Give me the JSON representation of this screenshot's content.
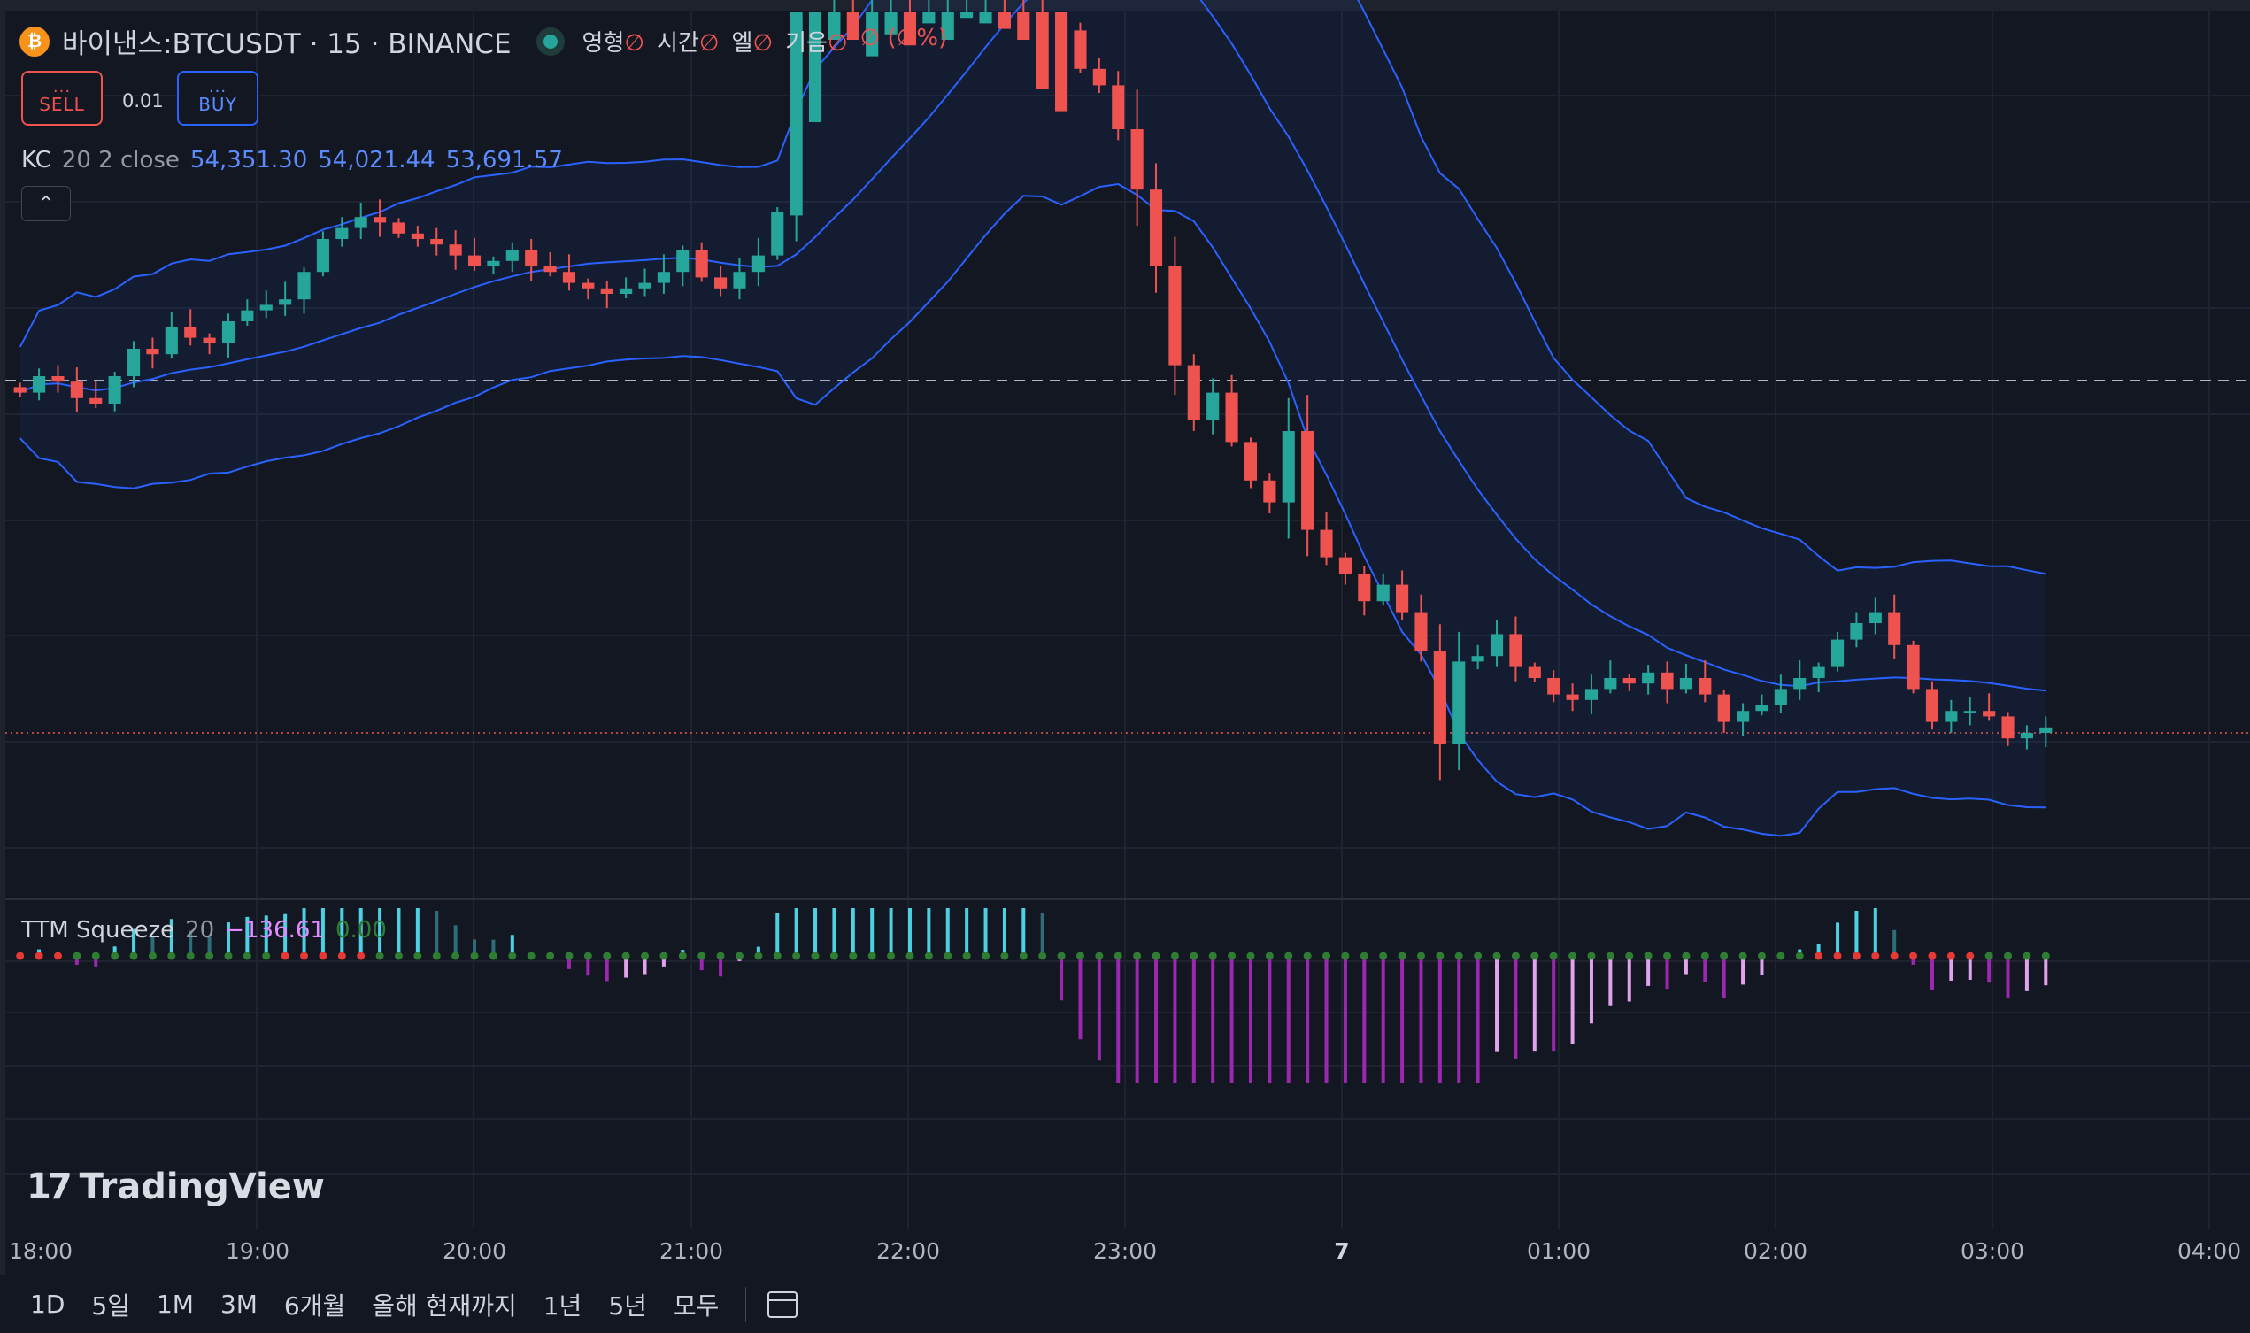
{
  "symbol": {
    "coin_glyph": "₿",
    "title": "바이낸스:BTCUSDT · 15 · BINANCE",
    "ohlc_labels": [
      "영형",
      "시간",
      "엘",
      "기음"
    ],
    "na": "∅",
    "change": "∅ (∅%)"
  },
  "trade": {
    "sell_dots": "...",
    "sell_label": "SELL",
    "spread": "0.01",
    "buy_dots": "...",
    "buy_label": "BUY"
  },
  "kc": {
    "name": "KC",
    "params": "20 2 close",
    "upper": "54,351.30",
    "middle": "54,021.44",
    "lower": "53,691.57",
    "collapse_icon": "chevron-up-icon",
    "collapse_glyph": "⌃"
  },
  "ttm": {
    "name": "TTM Squeeze",
    "params": "20",
    "momentum": "−136.61",
    "squeeze": "0.00"
  },
  "logo": {
    "mark": "17",
    "text": "TradingView"
  },
  "time_axis": [
    {
      "label": "18:00",
      "bold": false
    },
    {
      "label": "19:00",
      "bold": false
    },
    {
      "label": "20:00",
      "bold": false
    },
    {
      "label": "21:00",
      "bold": false
    },
    {
      "label": "22:00",
      "bold": false
    },
    {
      "label": "23:00",
      "bold": false
    },
    {
      "label": "7",
      "bold": true
    },
    {
      "label": "01:00",
      "bold": false
    },
    {
      "label": "02:00",
      "bold": false
    },
    {
      "label": "03:00",
      "bold": false
    },
    {
      "label": "04:00",
      "bold": false
    }
  ],
  "ranges": [
    "1D",
    "5일",
    "1M",
    "3M",
    "6개월",
    "올해 현재까지",
    "1년",
    "5년",
    "모두"
  ],
  "colors": {
    "up": "#26a69a",
    "down": "#ef5350",
    "band": "#2962ff",
    "bg": "#131722"
  },
  "chart_data": {
    "type": "candlestick",
    "interval": "15",
    "x_start": "18:00",
    "candles_close": [
      54200,
      54230,
      54220,
      54190,
      54180,
      54230,
      54280,
      54270,
      54320,
      54300,
      54290,
      54330,
      54350,
      54360,
      54370,
      54420,
      54480,
      54500,
      54520,
      54510,
      54490,
      54480,
      54470,
      54450,
      54430,
      54440,
      54460,
      54430,
      54420,
      54400,
      54390,
      54380,
      54390,
      54400,
      54420,
      54460,
      54410,
      54390,
      54420,
      54450,
      54530,
      54900,
      55100,
      55150,
      55100,
      55180,
      55220,
      55160,
      55180,
      55230,
      55240,
      55260,
      55230,
      55180,
      55040,
      54860,
      54790,
      54760,
      54680,
      54570,
      54430,
      54250,
      54150,
      54200,
      54110,
      54040,
      54000,
      54130,
      53950,
      53900,
      53870,
      53820,
      53850,
      53800,
      53730,
      53560,
      53710,
      53720,
      53760,
      53700,
      53680,
      53650,
      53640,
      53660,
      53680,
      53670,
      53690,
      53660,
      53680,
      53650,
      53600,
      53620,
      53630,
      53660,
      53680,
      53700,
      53750,
      53780,
      53800,
      53740,
      53660,
      53600,
      53620,
      53620,
      53610,
      53570,
      53580,
      53590
    ],
    "keltner": {
      "length": 20,
      "mult": 2,
      "source": "close",
      "upper": 54351.3,
      "middle": 54021.44,
      "lower": 53691.57
    },
    "ttm_momentum_last": -136.61
  }
}
